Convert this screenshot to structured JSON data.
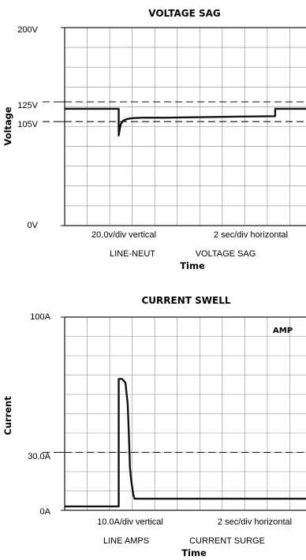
{
  "chart_data": [
    {
      "type": "line",
      "title": "VOLTAGE SAG",
      "xlabel": "Time",
      "ylabel": "Voltage",
      "ytick_labels": [
        "0V",
        "105V",
        "125V",
        "200V"
      ],
      "ylim": [
        0,
        200
      ],
      "xlim": [
        0,
        22
      ],
      "grid": true,
      "x_divisions": 11,
      "y_divisions": 10,
      "reference_lines": [
        {
          "y": 125,
          "style": "dashed"
        },
        {
          "y": 105,
          "style": "dashed"
        }
      ],
      "series": [
        {
          "x": [
            0,
            4.8,
            4.8,
            4.9,
            5.0,
            5.2,
            5.5,
            6.0,
            7.0,
            9.0,
            12.0,
            15.0,
            18.7,
            18.7,
            22
          ],
          "values": [
            118,
            118,
            91,
            98,
            103,
            106,
            107.5,
            108.5,
            109,
            109,
            109.5,
            110,
            110.5,
            118,
            118
          ]
        }
      ],
      "annotations": {
        "scale_vertical": "20.0v/div vertical",
        "scale_horizontal": "2 sec/div horizontal",
        "channel": "LINE-NEUT",
        "event": "VOLTAGE SAG"
      },
      "color": "#111111"
    },
    {
      "type": "line",
      "title": "CURRENT SWELL",
      "xlabel": "Time",
      "ylabel": "Current",
      "ytick_labels": [
        "0A",
        "30.0A",
        "100A"
      ],
      "ylim": [
        0,
        100
      ],
      "xlim": [
        0,
        22
      ],
      "grid": true,
      "x_divisions": 11,
      "y_divisions": 10,
      "reference_lines": [
        {
          "y": 30,
          "style": "dashed"
        }
      ],
      "series": [
        {
          "x": [
            0,
            4.8,
            4.8,
            5.1,
            5.4,
            5.6,
            5.7,
            5.8,
            5.9,
            6.0,
            6.1,
            6.2,
            22
          ],
          "values": [
            2,
            2,
            68,
            68,
            66,
            55,
            40,
            22,
            16,
            12,
            8,
            6,
            6
          ]
        }
      ],
      "annotations": {
        "corner_label": "AMP",
        "scale_vertical": "10.0A/div vertical",
        "scale_horizontal": "2 sec/div horizontal",
        "channel": "LINE AMPS",
        "event": "CURRENT SURGE"
      },
      "color": "#111111"
    }
  ]
}
